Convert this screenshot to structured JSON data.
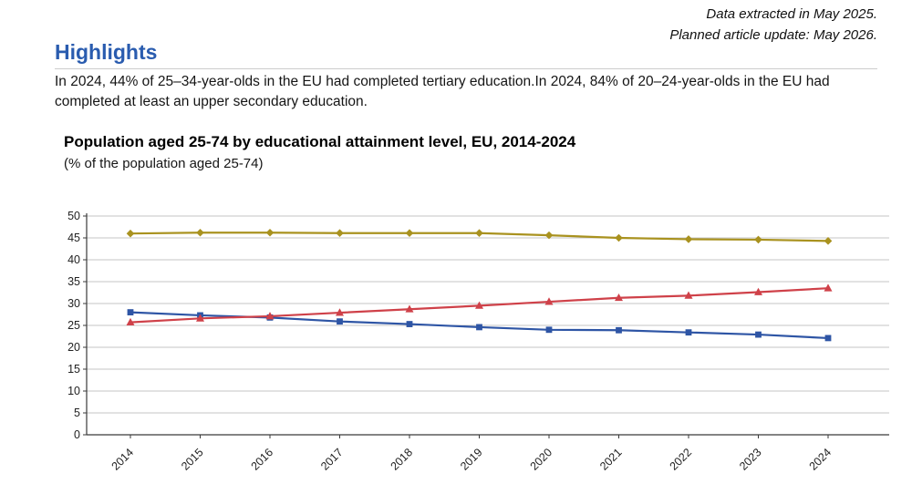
{
  "meta": {
    "data_extracted": "Data extracted in May 2025.",
    "article_update": "Planned article update: May 2026."
  },
  "highlights": {
    "heading": "Highlights",
    "body": "In 2024, 44% of 25–34-year-olds in the EU had completed tertiary education.In 2024, 84% of 20–24-year-olds in the EU had completed at least an upper secondary education."
  },
  "chart": {
    "title": "Population aged 25-74 by educational attainment level, EU, 2014-2024",
    "subtitle": "(% of the population aged 25-74)"
  },
  "chart_data": {
    "type": "line",
    "title": "Population aged 25-74 by educational attainment level, EU, 2014-2024",
    "subtitle": "(% of the population aged 25-74)",
    "x": [
      "2014",
      "2015",
      "2016",
      "2017",
      "2018",
      "2019",
      "2020",
      "2021",
      "2022",
      "2023",
      "2024"
    ],
    "ylim": [
      0,
      50
    ],
    "ytick_step": 5,
    "grid": true,
    "legend": "none",
    "grid_color": "#c6c6c6",
    "axis_color": "#3a3a3a",
    "tick_label_color": "#222222",
    "series": [
      {
        "name": "gold-diamond",
        "marker": "diamond",
        "color": "#a9921f",
        "values": [
          46.0,
          46.2,
          46.2,
          46.1,
          46.1,
          46.1,
          45.6,
          45.0,
          44.7,
          44.6,
          44.3
        ]
      },
      {
        "name": "blue-square",
        "marker": "square",
        "color": "#2e55a5",
        "values": [
          28.0,
          27.3,
          26.8,
          25.9,
          25.3,
          24.6,
          24.0,
          23.9,
          23.4,
          22.9,
          22.1
        ]
      },
      {
        "name": "red-triangle",
        "marker": "triangle",
        "color": "#cf4149",
        "values": [
          25.7,
          26.6,
          27.1,
          27.9,
          28.7,
          29.5,
          30.4,
          31.3,
          31.8,
          32.6,
          33.5
        ]
      }
    ]
  }
}
